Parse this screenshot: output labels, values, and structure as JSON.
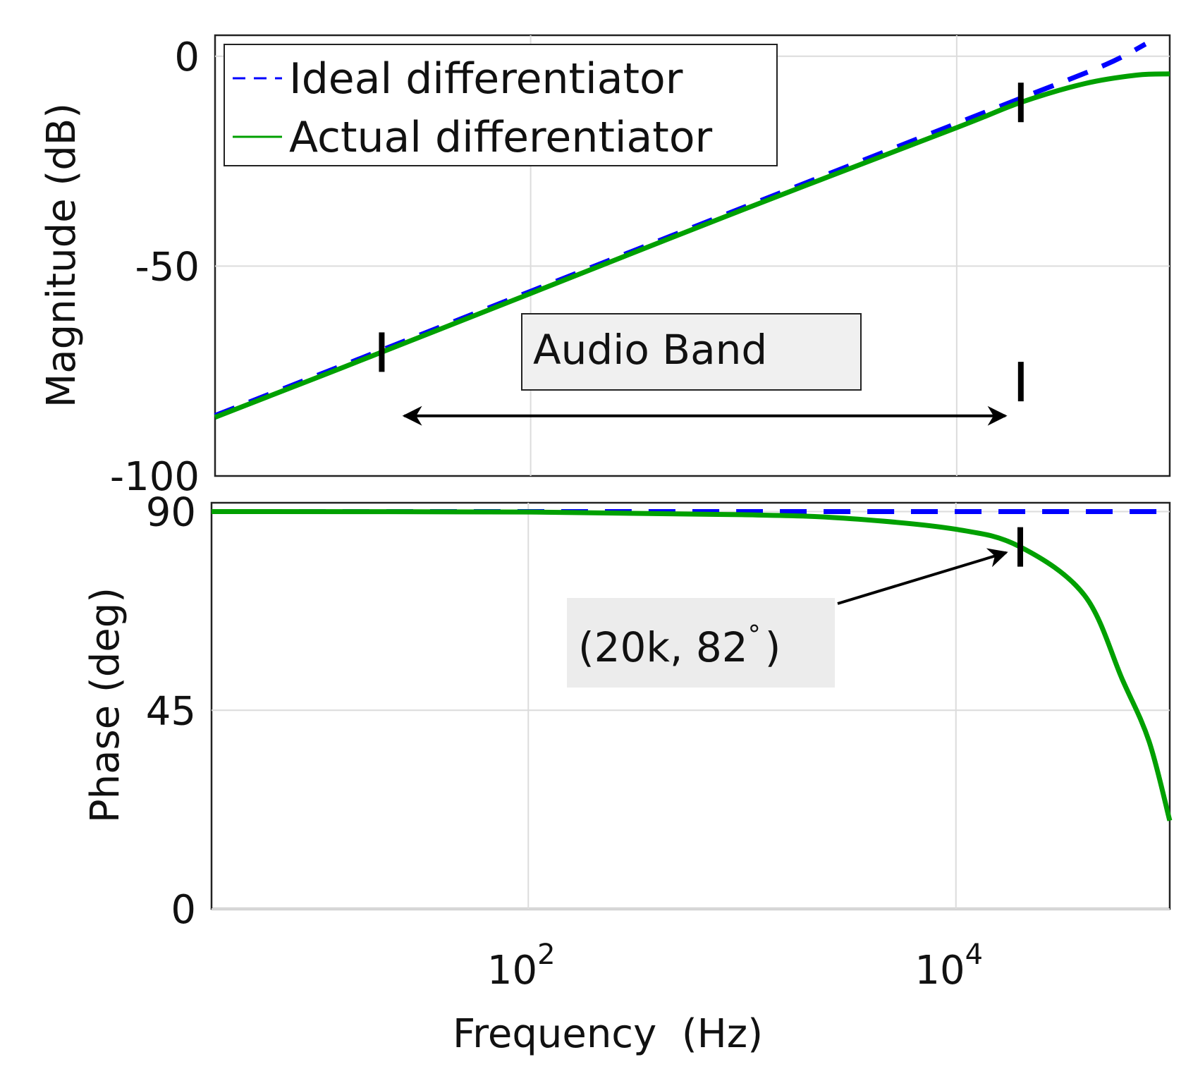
{
  "chart_data": [
    {
      "type": "line",
      "panel": "magnitude",
      "title": "",
      "xlabel": "",
      "ylabel": "Magnitude (dB)",
      "xscale": "log",
      "xlim": [
        3.3,
        100000
      ],
      "ylim": [
        -100,
        5
      ],
      "yticks": [
        0,
        -50,
        -100
      ],
      "ytick_labels": [
        "0",
        "-50",
        "-100"
      ],
      "grid": true,
      "legend": {
        "placement": "top-left",
        "entries": [
          "Ideal differentiator",
          "Actual differentiator"
        ]
      },
      "series": [
        {
          "name": "Ideal differentiator",
          "style": "dashed",
          "color": "#0000ff",
          "x": [
            3.3,
            10,
            20,
            100,
            1000,
            10000,
            20000,
            50000,
            77000
          ],
          "y": [
            -85.6,
            -76,
            -70,
            -56,
            -36,
            -16,
            -10,
            -2,
            2.9
          ]
        },
        {
          "name": "Actual differentiator",
          "style": "solid",
          "color": "#00a000",
          "x": [
            3.3,
            10,
            20,
            100,
            1000,
            10000,
            20000,
            40000,
            70000,
            100000
          ],
          "y": [
            -86,
            -76.5,
            -70.5,
            -56.5,
            -36.5,
            -17,
            -11,
            -6.5,
            -4.5,
            -4.2
          ]
        }
      ],
      "band": {
        "label": "Audio Band",
        "x_start": 20,
        "x_end": 20000
      }
    },
    {
      "type": "line",
      "panel": "phase",
      "title": "",
      "xlabel": "Frequency  (Hz)",
      "ylabel": "Phase (deg)",
      "xscale": "log",
      "xlim": [
        3.3,
        100000
      ],
      "ylim": [
        0,
        92
      ],
      "yticks": [
        90,
        45,
        0
      ],
      "ytick_labels": [
        "90",
        "45",
        "0"
      ],
      "xticks": [
        100,
        10000
      ],
      "xtick_labels": [
        {
          "base": "10",
          "exp": "2"
        },
        {
          "base": "10",
          "exp": "4"
        }
      ],
      "grid": true,
      "series": [
        {
          "name": "Ideal differentiator",
          "style": "dashed",
          "color": "#0000ff",
          "x": [
            3.3,
            100000
          ],
          "y": [
            90,
            90
          ]
        },
        {
          "name": "Actual differentiator",
          "style": "solid",
          "color": "#00a000",
          "x": [
            3.3,
            100,
            1000,
            3000,
            10000,
            20000,
            40000,
            60000,
            80000,
            100000
          ],
          "y": [
            90,
            89.9,
            89.3,
            88.5,
            86,
            82,
            71,
            52,
            38,
            20
          ]
        }
      ],
      "annotation": {
        "text": "(20k, 82",
        "degree": "°",
        "close": ")",
        "x": 20000,
        "y": 82
      }
    }
  ]
}
